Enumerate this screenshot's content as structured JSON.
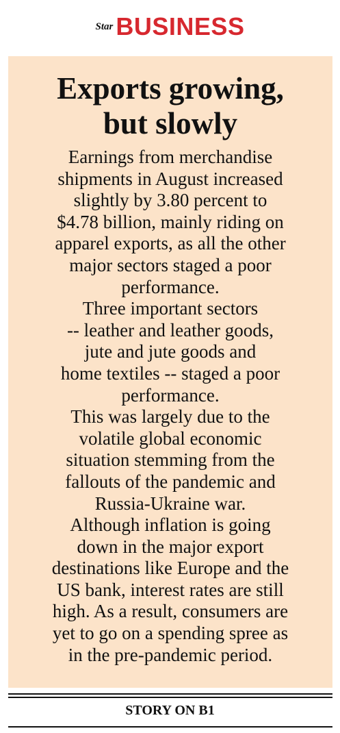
{
  "header": {
    "logo": "Star",
    "section": "BUSINESS"
  },
  "article": {
    "headline": [
      "Exports growing,",
      "but slowly"
    ],
    "paragraphs": [
      [
        "Earnings from merchandise",
        "shipments in August increased",
        "slightly by 3.80 percent to",
        "$4.78 billion, mainly riding on",
        "apparel exports, as all the other",
        "major sectors staged a poor",
        "performance."
      ],
      [
        "Three important sectors",
        "-- leather and leather goods,",
        "jute and jute goods and",
        "home textiles -- staged a poor",
        "performance."
      ],
      [
        "This was largely due to the",
        "volatile global economic",
        "situation stemming from the",
        "fallouts of the pandemic and",
        "Russia-Ukraine war."
      ],
      [
        "Although inflation is going",
        "down in the major export",
        "destinations like Europe and the",
        "US bank, interest rates are still",
        "high. As a result, consumers are",
        "yet to go on a spending spree as",
        "in the pre-pandemic period."
      ]
    ]
  },
  "footer": {
    "link": "STORY ON B1"
  }
}
